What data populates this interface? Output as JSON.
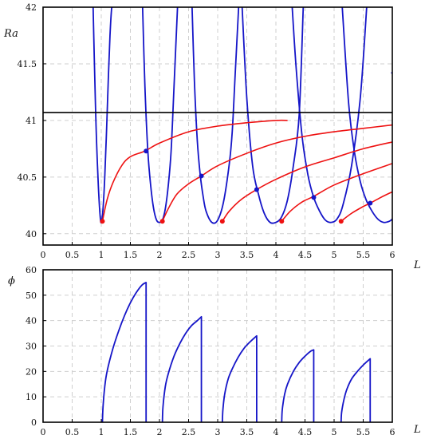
{
  "chart_data": [
    {
      "type": "line",
      "xlabel": "L",
      "ylabel": "Ra",
      "xlim": [
        0,
        6
      ],
      "ylim": [
        39.9,
        42
      ],
      "xticks": [
        "0",
        "0.5",
        "1",
        "1.5",
        "2",
        "2.5",
        "3",
        "3.5",
        "4",
        "4.5",
        "5",
        "5.5",
        "6"
      ],
      "yticks": [
        "40",
        "40.5",
        "41",
        "41.5",
        "42"
      ],
      "grid": true,
      "colors": {
        "marginal": "#1515c8",
        "stability": "#ee1111",
        "threshold": "#000000"
      },
      "series": [
        {
          "kind": "marginal",
          "n": 1,
          "x": [
            0.86,
            0.88,
            0.9,
            0.92,
            0.95,
            0.98,
            1.0,
            1.03,
            1.06,
            1.09,
            1.12,
            1.15,
            1.18,
            1.2
          ],
          "y": [
            42.0,
            41.55,
            41.14,
            40.8,
            40.42,
            40.16,
            40.1,
            40.22,
            40.5,
            40.9,
            41.35,
            41.75,
            42.0,
            42.0
          ]
        },
        {
          "kind": "marginal",
          "n": 2,
          "x": [
            1.71,
            1.75,
            1.8,
            1.85,
            1.9,
            1.95,
            2.0,
            2.05,
            2.1,
            2.15,
            2.2,
            2.25,
            2.31
          ],
          "y": [
            42.0,
            41.3,
            40.73,
            40.42,
            40.22,
            40.12,
            40.1,
            40.12,
            40.22,
            40.42,
            40.73,
            41.3,
            42.0
          ]
        },
        {
          "kind": "marginal",
          "n": 3,
          "x": [
            2.56,
            2.6,
            2.65,
            2.7,
            2.75,
            2.8,
            2.9,
            3.0,
            3.1,
            3.2,
            3.25,
            3.3,
            3.36
          ],
          "y": [
            42.0,
            41.35,
            40.82,
            40.52,
            40.33,
            40.2,
            40.1,
            40.12,
            40.28,
            40.62,
            40.9,
            41.4,
            42.0
          ]
        },
        {
          "kind": "marginal",
          "n": 4,
          "x": [
            3.42,
            3.5,
            3.6,
            3.7,
            3.8,
            3.9,
            4.0,
            4.1,
            4.2,
            4.3,
            4.4,
            4.47
          ],
          "y": [
            42.0,
            41.2,
            40.6,
            40.35,
            40.18,
            40.1,
            40.1,
            40.15,
            40.3,
            40.6,
            41.05,
            42.0
          ]
        },
        {
          "kind": "marginal",
          "n": 5,
          "x": [
            4.28,
            4.35,
            4.45,
            4.55,
            4.65,
            4.75,
            4.85,
            4.95,
            5.05,
            5.15,
            5.3,
            5.45,
            5.56
          ],
          "y": [
            42.0,
            41.45,
            40.86,
            40.52,
            40.32,
            40.2,
            40.12,
            40.1,
            40.13,
            40.25,
            40.6,
            41.2,
            42.0
          ]
        },
        {
          "kind": "marginal",
          "n": 6,
          "x": [
            5.14,
            5.25,
            5.35,
            5.45,
            5.55,
            5.65,
            5.75,
            5.85,
            5.95,
            6.0
          ],
          "y": [
            42.0,
            41.15,
            40.72,
            40.46,
            40.3,
            40.2,
            40.13,
            40.1,
            40.11,
            40.13
          ]
        },
        {
          "kind": "marginal",
          "n": 7,
          "x": [
            5.98,
            6.0
          ],
          "y": [
            41.42,
            41.42
          ]
        },
        {
          "kind": "stability",
          "n": 1,
          "x": [
            1.02,
            1.1,
            1.2,
            1.35,
            1.5,
            1.75,
            2.0,
            2.5,
            3.0,
            3.5,
            4.0,
            4.2
          ],
          "y": [
            40.11,
            40.3,
            40.45,
            40.6,
            40.68,
            40.73,
            40.8,
            40.9,
            40.95,
            40.98,
            41.0,
            41.0
          ]
        },
        {
          "kind": "stability",
          "n": 2,
          "x": [
            2.05,
            2.15,
            2.3,
            2.5,
            2.72,
            3.0,
            3.5,
            4.0,
            4.5,
            5.0,
            5.5,
            6.0
          ],
          "y": [
            40.11,
            40.22,
            40.35,
            40.44,
            40.51,
            40.6,
            40.71,
            40.8,
            40.86,
            40.9,
            40.93,
            40.96
          ]
        },
        {
          "kind": "stability",
          "n": 3,
          "x": [
            3.08,
            3.2,
            3.4,
            3.67,
            4.0,
            4.5,
            5.0,
            5.5,
            6.0
          ],
          "y": [
            40.11,
            40.2,
            40.3,
            40.39,
            40.48,
            40.59,
            40.67,
            40.75,
            40.81
          ]
        },
        {
          "kind": "stability",
          "n": 4,
          "x": [
            4.1,
            4.25,
            4.45,
            4.65,
            5.0,
            5.5,
            6.0
          ],
          "y": [
            40.11,
            40.2,
            40.28,
            40.33,
            40.43,
            40.53,
            40.62
          ]
        },
        {
          "kind": "stability",
          "n": 5,
          "x": [
            5.12,
            5.3,
            5.5,
            5.62,
            5.8,
            6.0
          ],
          "y": [
            40.11,
            40.18,
            40.24,
            40.27,
            40.32,
            40.37
          ]
        },
        {
          "kind": "threshold",
          "x": [
            0,
            6
          ],
          "y": [
            41.07,
            41.07
          ]
        }
      ],
      "points": [
        {
          "color": "red",
          "x": 1.02,
          "y": 40.11
        },
        {
          "color": "red",
          "x": 2.05,
          "y": 40.11
        },
        {
          "color": "red",
          "x": 3.08,
          "y": 40.11
        },
        {
          "color": "red",
          "x": 4.1,
          "y": 40.11
        },
        {
          "color": "red",
          "x": 5.12,
          "y": 40.11
        },
        {
          "color": "blue",
          "x": 1.77,
          "y": 40.73
        },
        {
          "color": "blue",
          "x": 2.72,
          "y": 40.51
        },
        {
          "color": "blue",
          "x": 3.67,
          "y": 40.39
        },
        {
          "color": "blue",
          "x": 4.65,
          "y": 40.32
        },
        {
          "color": "blue",
          "x": 5.62,
          "y": 40.27
        }
      ]
    },
    {
      "type": "line",
      "xlabel": "L",
      "ylabel": "ϕ",
      "xlim": [
        0,
        6
      ],
      "ylim": [
        0,
        60
      ],
      "xticks": [
        "0",
        "0.5",
        "1",
        "1.5",
        "2",
        "2.5",
        "3",
        "3.5",
        "4",
        "4.5",
        "5",
        "5.5",
        "6"
      ],
      "yticks": [
        "0",
        "10",
        "20",
        "30",
        "40",
        "50",
        "60"
      ],
      "grid": true,
      "color": "#1515c8",
      "series": [
        {
          "n": 1,
          "x": [
            1.02,
            1.03,
            1.06,
            1.1,
            1.2,
            1.3,
            1.4,
            1.5,
            1.6,
            1.7,
            1.77,
            1.77
          ],
          "y": [
            0,
            6,
            14,
            20,
            29,
            36,
            42,
            47,
            51,
            54,
            55,
            0
          ]
        },
        {
          "n": 2,
          "x": [
            2.05,
            2.06,
            2.1,
            2.15,
            2.25,
            2.35,
            2.45,
            2.55,
            2.65,
            2.72,
            2.72
          ],
          "y": [
            0,
            6,
            14,
            19,
            26,
            31,
            35,
            38,
            40,
            41.5,
            0
          ]
        },
        {
          "n": 3,
          "x": [
            3.08,
            3.09,
            3.12,
            3.18,
            3.25,
            3.35,
            3.45,
            3.55,
            3.67,
            3.67
          ],
          "y": [
            0,
            5,
            11,
            17,
            21,
            25.5,
            29,
            31.5,
            34,
            0
          ]
        },
        {
          "n": 4,
          "x": [
            4.1,
            4.11,
            4.15,
            4.2,
            4.3,
            4.4,
            4.5,
            4.6,
            4.65,
            4.65
          ],
          "y": [
            0,
            5,
            11,
            15,
            20,
            23.5,
            26,
            28,
            28.5,
            0
          ]
        },
        {
          "n": 5,
          "x": [
            5.12,
            5.13,
            5.17,
            5.22,
            5.3,
            5.4,
            5.5,
            5.62,
            5.62
          ],
          "y": [
            0,
            4,
            9,
            13,
            17,
            20,
            22.5,
            25,
            0
          ]
        }
      ]
    }
  ]
}
